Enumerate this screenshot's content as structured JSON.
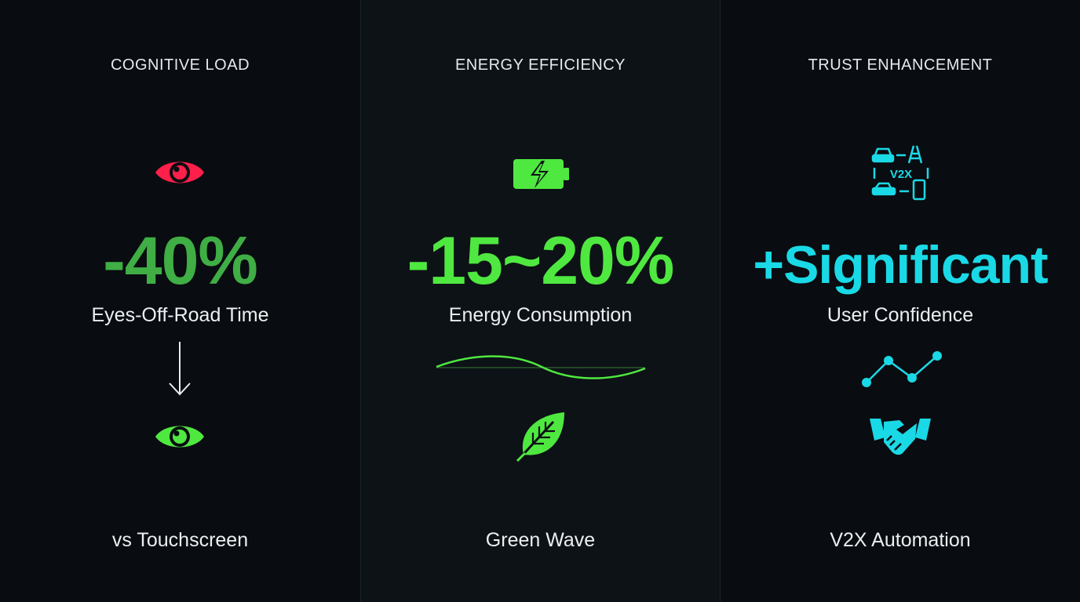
{
  "colors": {
    "background": "#080b0e",
    "red": "#ff1f4b",
    "green": "#4fe840",
    "green_metric": "#3fae45",
    "cyan": "#1ad9e6"
  },
  "panels": [
    {
      "heading": "COGNITIVE LOAD",
      "metric": "-40%",
      "subtitle": "Eyes-Off-Road Time",
      "footer": "vs Touchscreen",
      "icons": [
        "eye-icon-red",
        "arrow-down-icon",
        "eye-icon-green"
      ]
    },
    {
      "heading": "ENERGY EFFICIENCY",
      "metric": "-15~20%",
      "subtitle": "Energy Consumption",
      "footer": "Green Wave",
      "icons": [
        "battery-charging-icon",
        "wave-line-icon",
        "leaf-icon"
      ]
    },
    {
      "heading": "TRUST ENHANCEMENT",
      "metric": "+Significant",
      "subtitle": "User Confidence",
      "footer": "V2X Automation",
      "icon_label": "V2X",
      "icons": [
        "v2x-network-icon",
        "trend-line-icon",
        "handshake-icon"
      ]
    }
  ]
}
